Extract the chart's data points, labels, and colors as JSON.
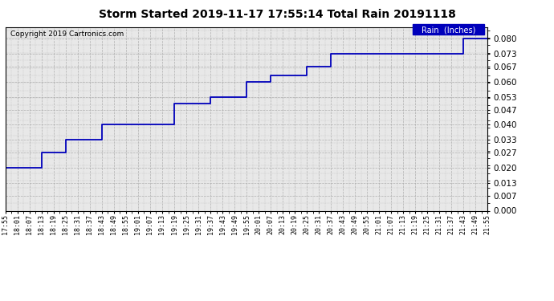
{
  "title": "Storm Started 2019-11-17 17:55:14 Total Rain 20191118",
  "copyright_text": "Copyright 2019 Cartronics.com",
  "legend_label": "Rain  (Inches)",
  "line_color": "#0000bb",
  "legend_bg": "#0000bb",
  "legend_fg": "#ffffff",
  "background_color": "#ffffff",
  "plot_bg": "#e8e8e8",
  "grid_color": "#aaaaaa",
  "x_labels": [
    "17:55",
    "18:01",
    "18:07",
    "18:13",
    "18:19",
    "18:25",
    "18:31",
    "18:37",
    "18:43",
    "18:49",
    "18:55",
    "19:01",
    "19:07",
    "19:13",
    "19:19",
    "19:25",
    "19:31",
    "19:37",
    "19:43",
    "19:49",
    "19:55",
    "20:01",
    "20:07",
    "20:13",
    "20:19",
    "20:25",
    "20:31",
    "20:37",
    "20:43",
    "20:49",
    "20:55",
    "21:01",
    "21:07",
    "21:13",
    "21:19",
    "21:25",
    "21:31",
    "21:37",
    "21:43",
    "21:49",
    "21:55"
  ],
  "rain_x": [
    0,
    3,
    3,
    5,
    5,
    8,
    8,
    14,
    14,
    17,
    17,
    20,
    20,
    22,
    22,
    25,
    25,
    27,
    27,
    38,
    38,
    40
  ],
  "rain_y": [
    0.02,
    0.02,
    0.027,
    0.027,
    0.033,
    0.033,
    0.04,
    0.04,
    0.05,
    0.05,
    0.053,
    0.053,
    0.06,
    0.06,
    0.063,
    0.063,
    0.067,
    0.067,
    0.073,
    0.073,
    0.08,
    0.08
  ],
  "ylim": [
    0.0,
    0.0855
  ],
  "yticks": [
    0.0,
    0.007,
    0.013,
    0.02,
    0.027,
    0.033,
    0.04,
    0.047,
    0.053,
    0.06,
    0.067,
    0.073,
    0.08
  ]
}
